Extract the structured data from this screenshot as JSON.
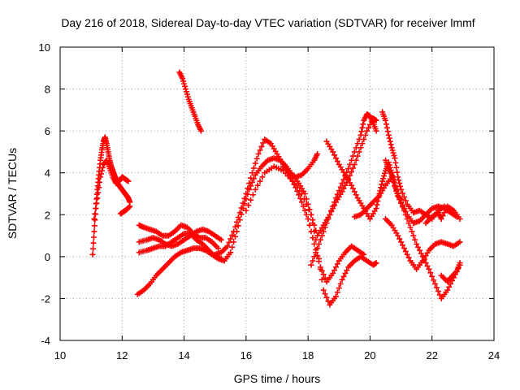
{
  "chart_data": {
    "type": "scatter",
    "title": "Day 216 of 2018, Sidereal Day-to-day VTEC variation (SDTVAR) for receiver lmmf",
    "xlabel": "GPS time / hours",
    "ylabel": "SDTVAR / TECUs",
    "xlim": [
      10,
      24
    ],
    "ylim": [
      -4,
      10
    ],
    "xticks": [
      10,
      12,
      14,
      16,
      18,
      20,
      22,
      24
    ],
    "yticks": [
      -4,
      -2,
      0,
      2,
      4,
      6,
      8,
      10
    ],
    "grid": true,
    "marker": "+",
    "series_color": "#ff0000",
    "series": [
      {
        "name": "seg1",
        "points": [
          [
            11.05,
            0.1
          ],
          [
            11.1,
            1.2
          ],
          [
            11.15,
            2.3
          ],
          [
            11.2,
            3.2
          ],
          [
            11.25,
            3.9
          ],
          [
            11.3,
            4.6
          ],
          [
            11.35,
            5.1
          ],
          [
            11.4,
            5.5
          ],
          [
            11.45,
            5.7
          ],
          [
            11.5,
            5.4
          ],
          [
            11.55,
            5.0
          ],
          [
            11.6,
            4.6
          ],
          [
            11.65,
            4.3
          ],
          [
            11.7,
            4.1
          ],
          [
            11.75,
            3.9
          ],
          [
            11.8,
            3.7
          ],
          [
            11.85,
            3.5
          ],
          [
            11.9,
            3.4
          ],
          [
            11.95,
            3.3
          ],
          [
            12.0,
            3.2
          ],
          [
            12.05,
            3.1
          ],
          [
            12.1,
            3.0
          ],
          [
            12.15,
            2.9
          ],
          [
            12.2,
            2.8
          ],
          [
            12.25,
            2.6
          ]
        ]
      },
      {
        "name": "seg2",
        "points": [
          [
            11.1,
            1.8
          ],
          [
            11.2,
            2.8
          ],
          [
            11.3,
            3.8
          ],
          [
            11.4,
            4.4
          ],
          [
            11.5,
            4.6
          ],
          [
            11.6,
            4.2
          ],
          [
            11.7,
            3.8
          ],
          [
            11.8,
            3.5
          ],
          [
            11.9,
            3.6
          ],
          [
            12.0,
            3.8
          ],
          [
            12.1,
            3.7
          ],
          [
            12.2,
            3.6
          ]
        ]
      },
      {
        "name": "seg3",
        "points": [
          [
            11.95,
            2.05
          ],
          [
            12.05,
            2.15
          ],
          [
            12.15,
            2.25
          ],
          [
            12.25,
            2.4
          ]
        ]
      },
      {
        "name": "seg4",
        "points": [
          [
            13.85,
            8.8
          ],
          [
            13.95,
            8.5
          ],
          [
            14.05,
            8.0
          ],
          [
            14.15,
            7.5
          ],
          [
            14.25,
            7.1
          ],
          [
            14.35,
            6.7
          ],
          [
            14.45,
            6.3
          ],
          [
            14.55,
            6.0
          ]
        ]
      },
      {
        "name": "seg5",
        "points": [
          [
            12.5,
            -1.8
          ],
          [
            12.7,
            -1.6
          ],
          [
            12.9,
            -1.3
          ],
          [
            13.1,
            -0.9
          ],
          [
            13.3,
            -0.6
          ],
          [
            13.5,
            -0.3
          ],
          [
            13.7,
            0.0
          ],
          [
            13.9,
            0.2
          ],
          [
            14.1,
            0.3
          ],
          [
            14.3,
            0.4
          ],
          [
            14.5,
            0.4
          ],
          [
            14.7,
            0.3
          ],
          [
            14.9,
            0.1
          ],
          [
            15.1,
            -0.1
          ],
          [
            15.3,
            -0.2
          ],
          [
            15.5,
            0.2
          ],
          [
            15.7,
            1.2
          ],
          [
            15.9,
            2.3
          ],
          [
            16.1,
            3.2
          ],
          [
            16.3,
            3.9
          ],
          [
            16.5,
            4.3
          ],
          [
            16.7,
            4.6
          ],
          [
            16.9,
            4.7
          ],
          [
            17.1,
            4.6
          ],
          [
            17.3,
            4.3
          ],
          [
            17.5,
            3.9
          ],
          [
            17.7,
            3.5
          ],
          [
            17.9,
            3.0
          ],
          [
            18.1,
            2.0
          ],
          [
            18.3,
            0.4
          ],
          [
            18.5,
            -1.6
          ],
          [
            18.7,
            -2.3
          ],
          [
            18.9,
            -1.9
          ],
          [
            19.1,
            -1.1
          ],
          [
            19.3,
            -0.5
          ],
          [
            19.5,
            -0.2
          ],
          [
            19.7,
            0.0
          ],
          [
            19.9,
            -0.2
          ],
          [
            20.1,
            -0.4
          ],
          [
            20.2,
            -0.3
          ]
        ]
      },
      {
        "name": "seg6",
        "points": [
          [
            12.55,
            1.5
          ],
          [
            12.7,
            1.4
          ],
          [
            12.9,
            1.3
          ],
          [
            13.1,
            1.2
          ],
          [
            13.3,
            1.0
          ],
          [
            13.5,
            1.0
          ],
          [
            13.7,
            1.2
          ],
          [
            13.9,
            1.5
          ],
          [
            14.1,
            1.4
          ],
          [
            14.3,
            1.1
          ],
          [
            14.5,
            0.9
          ],
          [
            14.7,
            0.9
          ],
          [
            14.9,
            0.7
          ],
          [
            15.1,
            0.4
          ]
        ]
      },
      {
        "name": "seg7",
        "points": [
          [
            12.55,
            0.7
          ],
          [
            12.8,
            0.8
          ],
          [
            13.0,
            0.9
          ],
          [
            13.2,
            0.8
          ],
          [
            13.4,
            0.6
          ],
          [
            13.6,
            0.5
          ],
          [
            13.8,
            0.6
          ],
          [
            14.0,
            0.8
          ],
          [
            14.2,
            1.0
          ],
          [
            14.4,
            1.2
          ],
          [
            14.6,
            1.3
          ],
          [
            14.8,
            1.2
          ],
          [
            15.0,
            1.0
          ],
          [
            15.2,
            0.8
          ]
        ]
      },
      {
        "name": "seg8",
        "points": [
          [
            12.55,
            0.2
          ],
          [
            12.8,
            0.3
          ],
          [
            13.0,
            0.4
          ],
          [
            13.2,
            0.5
          ],
          [
            13.4,
            0.5
          ],
          [
            13.6,
            0.7
          ],
          [
            13.8,
            0.9
          ],
          [
            14.0,
            1.1
          ],
          [
            14.2,
            1.1
          ],
          [
            14.4,
            0.8
          ],
          [
            14.6,
            0.6
          ],
          [
            14.8,
            0.3
          ],
          [
            15.0,
            0.0
          ],
          [
            15.2,
            -0.1
          ]
        ]
      },
      {
        "name": "seg9",
        "points": [
          [
            15.0,
            0.1
          ],
          [
            15.2,
            0.2
          ],
          [
            15.4,
            0.5
          ],
          [
            15.6,
            1.2
          ],
          [
            15.8,
            2.1
          ],
          [
            16.0,
            3.0
          ],
          [
            16.2,
            4.0
          ],
          [
            16.4,
            4.9
          ],
          [
            16.6,
            5.6
          ],
          [
            16.8,
            5.4
          ],
          [
            17.0,
            4.9
          ],
          [
            17.2,
            4.4
          ],
          [
            17.4,
            3.9
          ],
          [
            17.6,
            3.3
          ],
          [
            17.8,
            2.6
          ],
          [
            18.0,
            1.8
          ],
          [
            18.2,
            0.6
          ],
          [
            18.4,
            -0.5
          ],
          [
            18.6,
            -1.2
          ],
          [
            18.8,
            -0.8
          ],
          [
            19.0,
            -0.2
          ],
          [
            19.2,
            0.2
          ],
          [
            19.4,
            0.5
          ],
          [
            19.6,
            0.3
          ],
          [
            19.8,
            0.1
          ]
        ]
      },
      {
        "name": "seg10",
        "points": [
          [
            16.0,
            2.2
          ],
          [
            16.3,
            3.2
          ],
          [
            16.6,
            4.0
          ],
          [
            16.9,
            4.3
          ],
          [
            17.2,
            4.1
          ],
          [
            17.5,
            3.6
          ],
          [
            17.8,
            3.0
          ],
          [
            18.1,
            2.0
          ],
          [
            18.3,
            1.0
          ],
          [
            18.5,
            1.5
          ],
          [
            18.7,
            2.0
          ],
          [
            18.9,
            2.6
          ],
          [
            19.1,
            3.1
          ],
          [
            19.3,
            3.7
          ],
          [
            19.5,
            4.4
          ],
          [
            19.7,
            5.2
          ],
          [
            19.9,
            6.0
          ],
          [
            20.1,
            6.6
          ],
          [
            20.2,
            6.5
          ]
        ]
      },
      {
        "name": "seg11",
        "points": [
          [
            17.2,
            4.3
          ],
          [
            17.4,
            4.0
          ],
          [
            17.6,
            3.8
          ],
          [
            17.8,
            3.9
          ],
          [
            18.0,
            4.2
          ],
          [
            18.2,
            4.6
          ],
          [
            18.3,
            4.9
          ]
        ]
      },
      {
        "name": "seg12",
        "points": [
          [
            18.1,
            -0.4
          ],
          [
            18.3,
            0.4
          ],
          [
            18.5,
            1.2
          ],
          [
            18.7,
            2.0
          ],
          [
            18.9,
            2.8
          ],
          [
            19.1,
            3.5
          ],
          [
            19.3,
            4.2
          ],
          [
            19.5,
            5.0
          ],
          [
            19.7,
            5.8
          ],
          [
            19.8,
            6.5
          ],
          [
            19.9,
            6.8
          ],
          [
            20.0,
            6.7
          ],
          [
            20.1,
            6.4
          ],
          [
            20.2,
            6.0
          ]
        ]
      },
      {
        "name": "seg13",
        "points": [
          [
            18.6,
            5.5
          ],
          [
            18.8,
            5.0
          ],
          [
            19.0,
            4.4
          ],
          [
            19.2,
            3.9
          ],
          [
            19.4,
            3.4
          ],
          [
            19.6,
            2.8
          ],
          [
            19.8,
            2.3
          ],
          [
            20.0,
            1.8
          ],
          [
            20.2,
            2.3
          ],
          [
            20.3,
            3.0
          ],
          [
            20.4,
            3.6
          ],
          [
            20.5,
            4.1
          ],
          [
            20.6,
            4.5
          ],
          [
            20.7,
            4.0
          ],
          [
            20.8,
            3.4
          ],
          [
            21.0,
            2.6
          ],
          [
            21.2,
            2.0
          ],
          [
            21.4,
            1.6
          ],
          [
            21.6,
            1.7
          ],
          [
            21.8,
            2.0
          ],
          [
            22.0,
            2.3
          ],
          [
            22.2,
            2.4
          ],
          [
            22.4,
            2.3
          ],
          [
            22.6,
            2.1
          ],
          [
            22.8,
            1.9
          ]
        ]
      },
      {
        "name": "seg14",
        "points": [
          [
            19.5,
            1.9
          ],
          [
            19.7,
            2.0
          ],
          [
            19.9,
            2.3
          ],
          [
            20.1,
            2.6
          ],
          [
            20.3,
            2.9
          ],
          [
            20.5,
            3.4
          ],
          [
            20.7,
            3.8
          ],
          [
            20.9,
            2.9
          ],
          [
            21.1,
            2.2
          ],
          [
            21.3,
            1.4
          ],
          [
            21.5,
            0.6
          ],
          [
            21.7,
            0.0
          ],
          [
            21.9,
            -0.6
          ],
          [
            22.1,
            -1.3
          ],
          [
            22.3,
            -2.0
          ],
          [
            22.5,
            -1.6
          ],
          [
            22.7,
            -1.0
          ],
          [
            22.9,
            -0.4
          ]
        ]
      },
      {
        "name": "seg15",
        "points": [
          [
            20.4,
            6.9
          ],
          [
            20.5,
            6.5
          ],
          [
            20.6,
            5.8
          ],
          [
            20.7,
            5.2
          ],
          [
            20.8,
            4.7
          ],
          [
            20.9,
            3.8
          ],
          [
            21.0,
            3.2
          ],
          [
            21.2,
            2.5
          ],
          [
            21.4,
            2.1
          ],
          [
            21.6,
            2.2
          ],
          [
            21.8,
            2.0
          ],
          [
            22.0,
            1.8
          ],
          [
            22.2,
            2.2
          ],
          [
            22.4,
            2.4
          ],
          [
            22.6,
            2.2
          ]
        ]
      },
      {
        "name": "seg16",
        "points": [
          [
            20.5,
            1.8
          ],
          [
            20.7,
            1.5
          ],
          [
            20.9,
            1.0
          ],
          [
            21.1,
            0.4
          ],
          [
            21.3,
            -0.2
          ],
          [
            21.5,
            -0.6
          ],
          [
            21.7,
            -0.2
          ],
          [
            21.9,
            0.3
          ],
          [
            22.1,
            0.6
          ],
          [
            22.3,
            0.7
          ],
          [
            22.5,
            0.6
          ],
          [
            22.7,
            0.5
          ],
          [
            22.9,
            0.7
          ]
        ]
      },
      {
        "name": "seg17",
        "points": [
          [
            20.5,
            4.6
          ],
          [
            20.6,
            4.2
          ],
          [
            20.7,
            3.9
          ],
          [
            20.8,
            3.4
          ],
          [
            20.9,
            2.9
          ],
          [
            21.0,
            2.7
          ]
        ]
      },
      {
        "name": "seg18",
        "points": [
          [
            22.3,
            -0.9
          ],
          [
            22.5,
            -1.2
          ],
          [
            22.6,
            -1.0
          ],
          [
            22.8,
            -0.7
          ],
          [
            22.9,
            -0.3
          ]
        ]
      },
      {
        "name": "seg19",
        "points": [
          [
            21.8,
            1.6
          ],
          [
            22.0,
            1.9
          ],
          [
            22.2,
            2.1
          ],
          [
            22.3,
            1.8
          ],
          [
            22.5,
            2.4
          ],
          [
            22.7,
            2.2
          ],
          [
            22.9,
            1.8
          ]
        ]
      }
    ]
  }
}
